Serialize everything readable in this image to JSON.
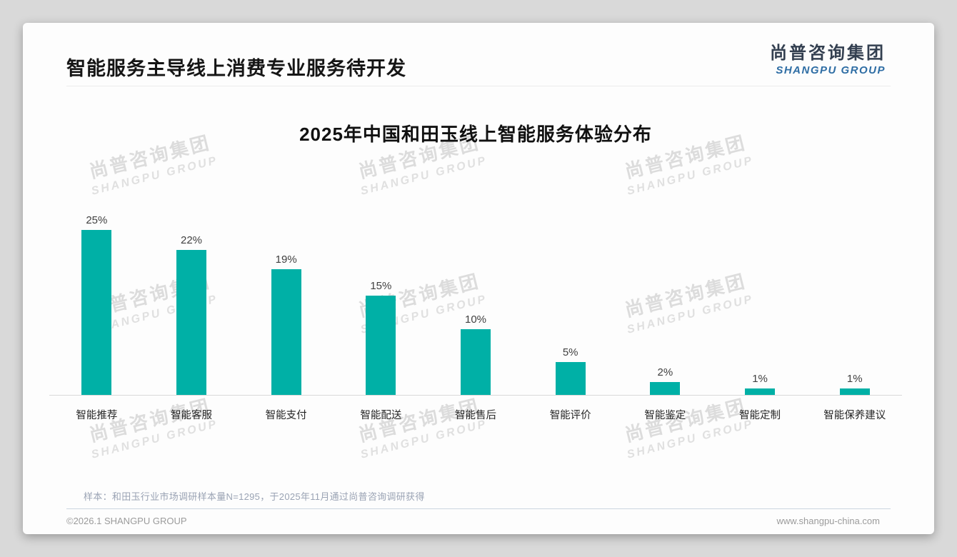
{
  "page": {
    "title": "智能服务主导线上消费专业服务待开发",
    "logo": {
      "cn": "尚普咨询集团",
      "en": "SHANGPU GROUP"
    },
    "watermark": {
      "cn": "尚普咨询集团",
      "en": "SHANGPU GROUP"
    },
    "note": "样本：和田玉行业市场调研样本量N=1295，于2025年11月通过尚普咨询调研获得",
    "footer_left": "©2026.1 SHANGPU GROUP",
    "footer_right": "www.shangpu-china.com"
  },
  "chart_data": {
    "type": "bar",
    "title": "2025年中国和田玉线上智能服务体验分布",
    "categories": [
      "智能推荐",
      "智能客服",
      "智能支付",
      "智能配送",
      "智能售后",
      "智能评价",
      "智能鉴定",
      "智能定制",
      "智能保养建议"
    ],
    "values": [
      25,
      22,
      19,
      15,
      10,
      5,
      2,
      1,
      1
    ],
    "value_labels": [
      "25%",
      "22%",
      "19%",
      "15%",
      "10%",
      "5%",
      "2%",
      "1%",
      "1%"
    ],
    "unit": "%",
    "bar_color": "#00b0a6",
    "axis_color": "#d9d9d9",
    "xlabel": "",
    "ylabel": "",
    "ylim": [
      0,
      27
    ],
    "grid": false,
    "legend": false
  }
}
